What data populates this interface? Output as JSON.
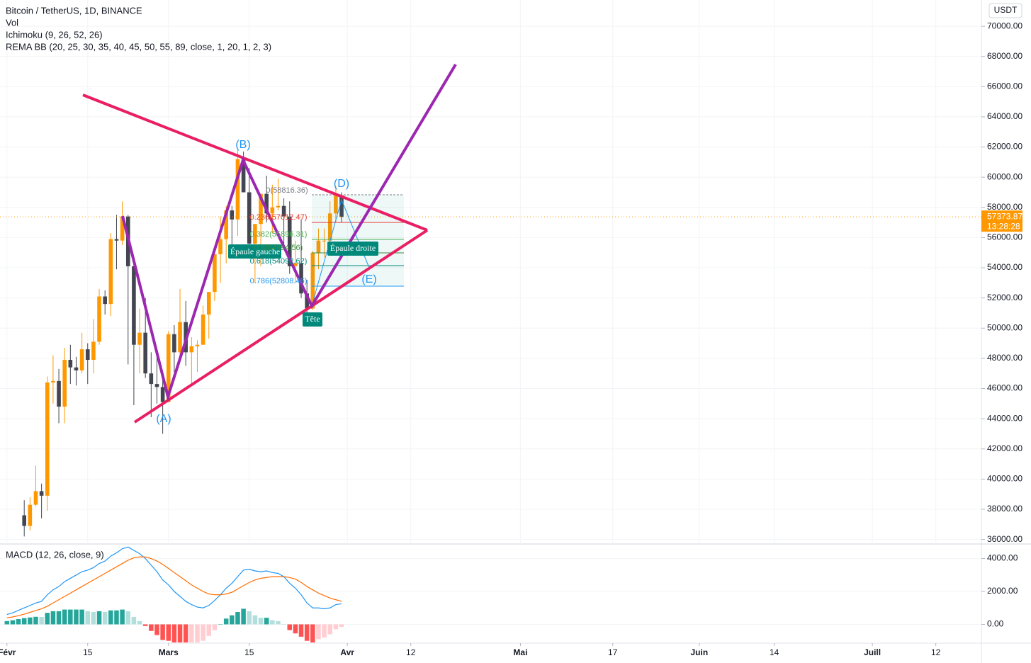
{
  "header": {
    "lines": [
      "Bitcoin / TetherUS, 1D, BINANCE",
      "Vol",
      "Ichimoku (9, 26, 52, 26)",
      "REMA BB (20, 25, 30, 35, 40, 45, 50, 55, 89, close, 1, 20, 1, 2, 3)"
    ],
    "currency": "USDT",
    "countdown": "13:28:28"
  },
  "chart_data": [
    {
      "type": "candlestick",
      "up_color": "#ff9800",
      "down_color": "#434651",
      "last_price": 57373.87,
      "x": [
        3,
        4,
        5,
        6,
        7,
        8,
        9,
        10,
        11,
        12,
        13,
        14,
        15,
        16,
        17,
        18,
        19,
        20,
        21,
        22,
        23,
        24,
        25,
        26,
        27,
        28,
        29,
        30,
        31,
        32,
        33,
        34,
        35,
        36,
        37,
        38,
        39,
        40,
        41,
        42,
        43,
        44,
        45,
        46,
        47,
        48,
        49,
        50,
        51,
        52,
        53,
        54,
        55,
        56,
        57,
        58
      ],
      "open": [
        37600,
        36900,
        38300,
        39200,
        38900,
        46400,
        46500,
        44800,
        47900,
        47400,
        47200,
        48600,
        47900,
        49100,
        52100,
        51600,
        55900,
        55800,
        57400,
        54100,
        48900,
        49700,
        47000,
        46300,
        46100,
        45100,
        49600,
        48400,
        50400,
        48400,
        48800,
        48900,
        50900,
        52400,
        54900,
        55900,
        57800,
        57200,
        61200,
        59000,
        55600,
        56900,
        58900,
        57600,
        58000,
        58100,
        57400,
        54100,
        54300,
        52300,
        51300,
        55000,
        55800,
        55800,
        57600,
        58800
      ],
      "high": [
        38600,
        38800,
        40900,
        39700,
        46800,
        48200,
        47300,
        48700,
        48900,
        48100,
        49700,
        49000,
        50600,
        52600,
        52500,
        56300,
        57500,
        58400,
        57500,
        54200,
        51300,
        52000,
        48400,
        48400,
        46600,
        49800,
        50200,
        52600,
        51800,
        49400,
        49200,
        51500,
        52400,
        54900,
        57400,
        58100,
        58100,
        61800,
        61700,
        60600,
        56900,
        58900,
        60100,
        59500,
        59900,
        58600,
        58400,
        55800,
        57200,
        53200,
        55100,
        56600,
        56600,
        58400,
        59400,
        59000
      ],
      "low": [
        36200,
        36600,
        38200,
        37400,
        37900,
        45000,
        43700,
        43700,
        46300,
        46200,
        47000,
        46300,
        47000,
        48900,
        50900,
        50800,
        53900,
        55500,
        47600,
        44900,
        47000,
        46700,
        44100,
        45000,
        43000,
        45100,
        47100,
        48100,
        47500,
        46300,
        47100,
        48900,
        49300,
        51800,
        53000,
        54300,
        54900,
        56100,
        59000,
        54600,
        53000,
        54100,
        57000,
        56300,
        57800,
        55400,
        53600,
        53000,
        52000,
        50400,
        51200,
        53900,
        54700,
        54900,
        57000,
        57000
      ],
      "close": [
        36900,
        38300,
        39200,
        38900,
        46400,
        46500,
        44800,
        47900,
        47400,
        47200,
        48600,
        47900,
        49100,
        52100,
        51600,
        55900,
        55800,
        57400,
        54100,
        48900,
        49700,
        47000,
        46300,
        46100,
        45100,
        49600,
        48400,
        50400,
        48400,
        48800,
        48900,
        50900,
        52400,
        54900,
        55900,
        57800,
        57200,
        61200,
        59000,
        55600,
        56900,
        58900,
        57600,
        58000,
        58100,
        57400,
        54100,
        54300,
        52300,
        51300,
        55000,
        55800,
        55800,
        57600,
        58800,
        57373.87
      ],
      "xlim": [
        -1.2,
        168.9
      ],
      "xticks": [
        {
          "value": 0,
          "label": "Févr"
        },
        {
          "value": 14,
          "label": "15"
        },
        {
          "value": 28,
          "label": "Mars"
        },
        {
          "value": 42,
          "label": "15"
        },
        {
          "value": 59,
          "label": "Avr"
        },
        {
          "value": 70,
          "label": "12"
        },
        {
          "value": 89,
          "label": "Mai"
        },
        {
          "value": 105,
          "label": "17"
        },
        {
          "value": 120,
          "label": "Juin"
        },
        {
          "value": 133,
          "label": "14"
        },
        {
          "value": 150,
          "label": "Juill"
        },
        {
          "value": 161,
          "label": "12"
        }
      ],
      "ylim": [
        35700,
        71740
      ],
      "yticks": [
        {
          "value": 36000,
          "label": "36000.00"
        },
        {
          "value": 38000,
          "label": "38000.00"
        },
        {
          "value": 40000,
          "label": "40000.00"
        },
        {
          "value": 42000,
          "label": "42000.00"
        },
        {
          "value": 44000,
          "label": "44000.00"
        },
        {
          "value": 46000,
          "label": "46000.00"
        },
        {
          "value": 48000,
          "label": "48000.00"
        },
        {
          "value": 50000,
          "label": "50000.00"
        },
        {
          "value": 52000,
          "label": "52000.00"
        },
        {
          "value": 54000,
          "label": "54000.00"
        },
        {
          "value": 56000,
          "label": "56000.00"
        },
        {
          "value": 58000,
          "label": "58000.00"
        },
        {
          "value": 60000,
          "label": "60000.00"
        },
        {
          "value": 62000,
          "label": "62000.00"
        },
        {
          "value": 64000,
          "label": "64000.00"
        },
        {
          "value": 66000,
          "label": "66000.00"
        },
        {
          "value": 68000,
          "label": "68000.00"
        },
        {
          "value": 70000,
          "label": "70000.00"
        }
      ],
      "annotations": [
        "(A)",
        "(B)",
        "(D)",
        "(E)",
        "Épaule gauche",
        "Épaule droite",
        "Tête",
        "0(58816.36)",
        "0.236(57012.47)",
        "0.382(55896.31)",
        "0.5(54994.56)",
        "0.618(54092.62)",
        "0.786(52808.46)"
      ]
    },
    {
      "type": "macd",
      "title": "MACD (12, 26, close, 9)",
      "x": [
        0,
        1,
        2,
        3,
        4,
        5,
        6,
        7,
        8,
        9,
        10,
        11,
        12,
        13,
        14,
        15,
        16,
        17,
        18,
        19,
        20,
        21,
        22,
        23,
        24,
        25,
        26,
        27,
        28,
        29,
        30,
        31,
        32,
        33,
        34,
        35,
        36,
        37,
        38,
        39,
        40,
        41,
        42,
        43,
        44,
        45,
        46,
        47,
        48,
        49,
        50,
        51,
        52,
        53,
        54,
        55,
        56,
        57,
        58
      ],
      "series": [
        {
          "name": "MACD",
          "color": "#2196f3",
          "values": [
            600,
            700,
            850,
            1000,
            1150,
            1300,
            1400,
            1800,
            2100,
            2300,
            2600,
            2800,
            3000,
            3200,
            3300,
            3450,
            3700,
            3850,
            4150,
            4350,
            4600,
            4700,
            4500,
            4300,
            4000,
            3600,
            3200,
            2700,
            2400,
            2000,
            1700,
            1400,
            1200,
            1050,
            1000,
            1150,
            1450,
            1800,
            2200,
            2500,
            2900,
            3300,
            3350,
            3250,
            3200,
            3250,
            3150,
            3100,
            2900,
            2500,
            2200,
            1800,
            1300,
            1000,
            1000,
            950,
            1000,
            1200,
            1250
          ]
        },
        {
          "name": "Signal",
          "color": "#ff6d00",
          "values": [
            400,
            450,
            530,
            620,
            730,
            840,
            950,
            1100,
            1300,
            1500,
            1700,
            1900,
            2100,
            2300,
            2500,
            2700,
            2900,
            3100,
            3300,
            3500,
            3700,
            3900,
            4050,
            4100,
            4100,
            4000,
            3850,
            3650,
            3400,
            3150,
            2900,
            2650,
            2400,
            2200,
            2000,
            1850,
            1800,
            1800,
            1850,
            1950,
            2150,
            2350,
            2550,
            2700,
            2800,
            2850,
            2900,
            2900,
            2900,
            2850,
            2750,
            2550,
            2300,
            2100,
            1900,
            1750,
            1600,
            1500,
            1400
          ]
        }
      ],
      "histogram": [
        200,
        250,
        320,
        380,
        420,
        460,
        450,
        700,
        800,
        800,
        900,
        900,
        900,
        900,
        800,
        750,
        800,
        750,
        850,
        850,
        900,
        800,
        450,
        200,
        -100,
        -400,
        -650,
        -950,
        -1000,
        -1150,
        -1200,
        -1250,
        -1200,
        -1150,
        -1000,
        -700,
        -350,
        0,
        350,
        550,
        750,
        950,
        800,
        550,
        400,
        400,
        250,
        200,
        0,
        -350,
        -550,
        -750,
        -1000,
        -1100,
        -900,
        -800,
        -600,
        -300,
        -150
      ],
      "xlim": [
        -1.2,
        168.9
      ],
      "ylim": [
        -1100,
        4800
      ],
      "yticks": [
        {
          "value": 0,
          "label": "0.00"
        },
        {
          "value": 2000,
          "label": "2000.00"
        },
        {
          "value": 4000,
          "label": "4000.00"
        }
      ]
    }
  ]
}
